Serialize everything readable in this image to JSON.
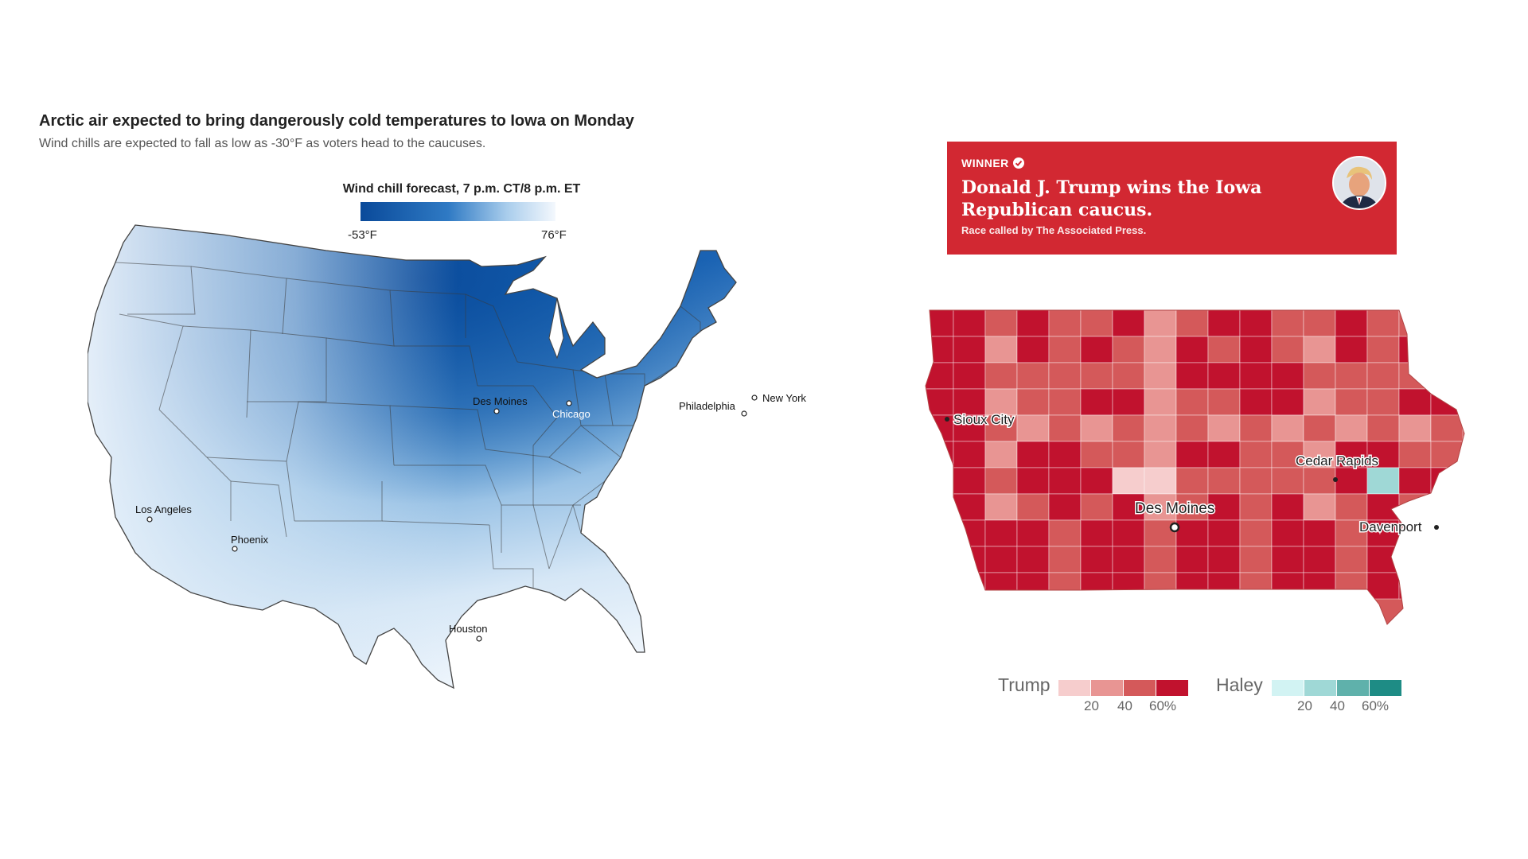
{
  "left_panel": {
    "title": "Arctic air expected to bring dangerously cold temperatures to Iowa on Monday",
    "subtitle": "Wind chills are expected to fall as low as -30°F as voters head to the caucuses.",
    "legend": {
      "title": "Wind chill forecast, 7 p.m. CT/8 p.m. ET",
      "min_label": "-53°F",
      "max_label": "76°F",
      "color_low": "#0a4a9a",
      "color_high": "#f4f8fd"
    },
    "cities": [
      {
        "name": "Des Moines"
      },
      {
        "name": "Chicago"
      },
      {
        "name": "Philadelphia"
      },
      {
        "name": "New York"
      },
      {
        "name": "Los Angeles"
      },
      {
        "name": "Phoenix"
      },
      {
        "name": "Houston"
      }
    ]
  },
  "banner": {
    "winner_label": "WINNER",
    "headline": "Donald J. Trump wins the Iowa Republican caucus.",
    "subtext": "Race called by The Associated Press.",
    "bg_color": "#d22832",
    "icons": [
      "check-icon",
      "candidate-photo"
    ]
  },
  "iowa_map": {
    "cities": [
      {
        "name": "Sioux City"
      },
      {
        "name": "Cedar Rapids"
      },
      {
        "name": "Des Moines"
      },
      {
        "name": "Davenport"
      }
    ],
    "legend": {
      "trump": {
        "label": "Trump",
        "colors": [
          "#f6cdcd",
          "#e89593",
          "#d4595a",
          "#c1122e"
        ]
      },
      "haley": {
        "label": "Haley",
        "colors": [
          "#d2f3f3",
          "#9fd8d6",
          "#5fb1ab",
          "#1e8c85"
        ]
      },
      "ticks": [
        "20",
        "40",
        "60%"
      ]
    }
  }
}
